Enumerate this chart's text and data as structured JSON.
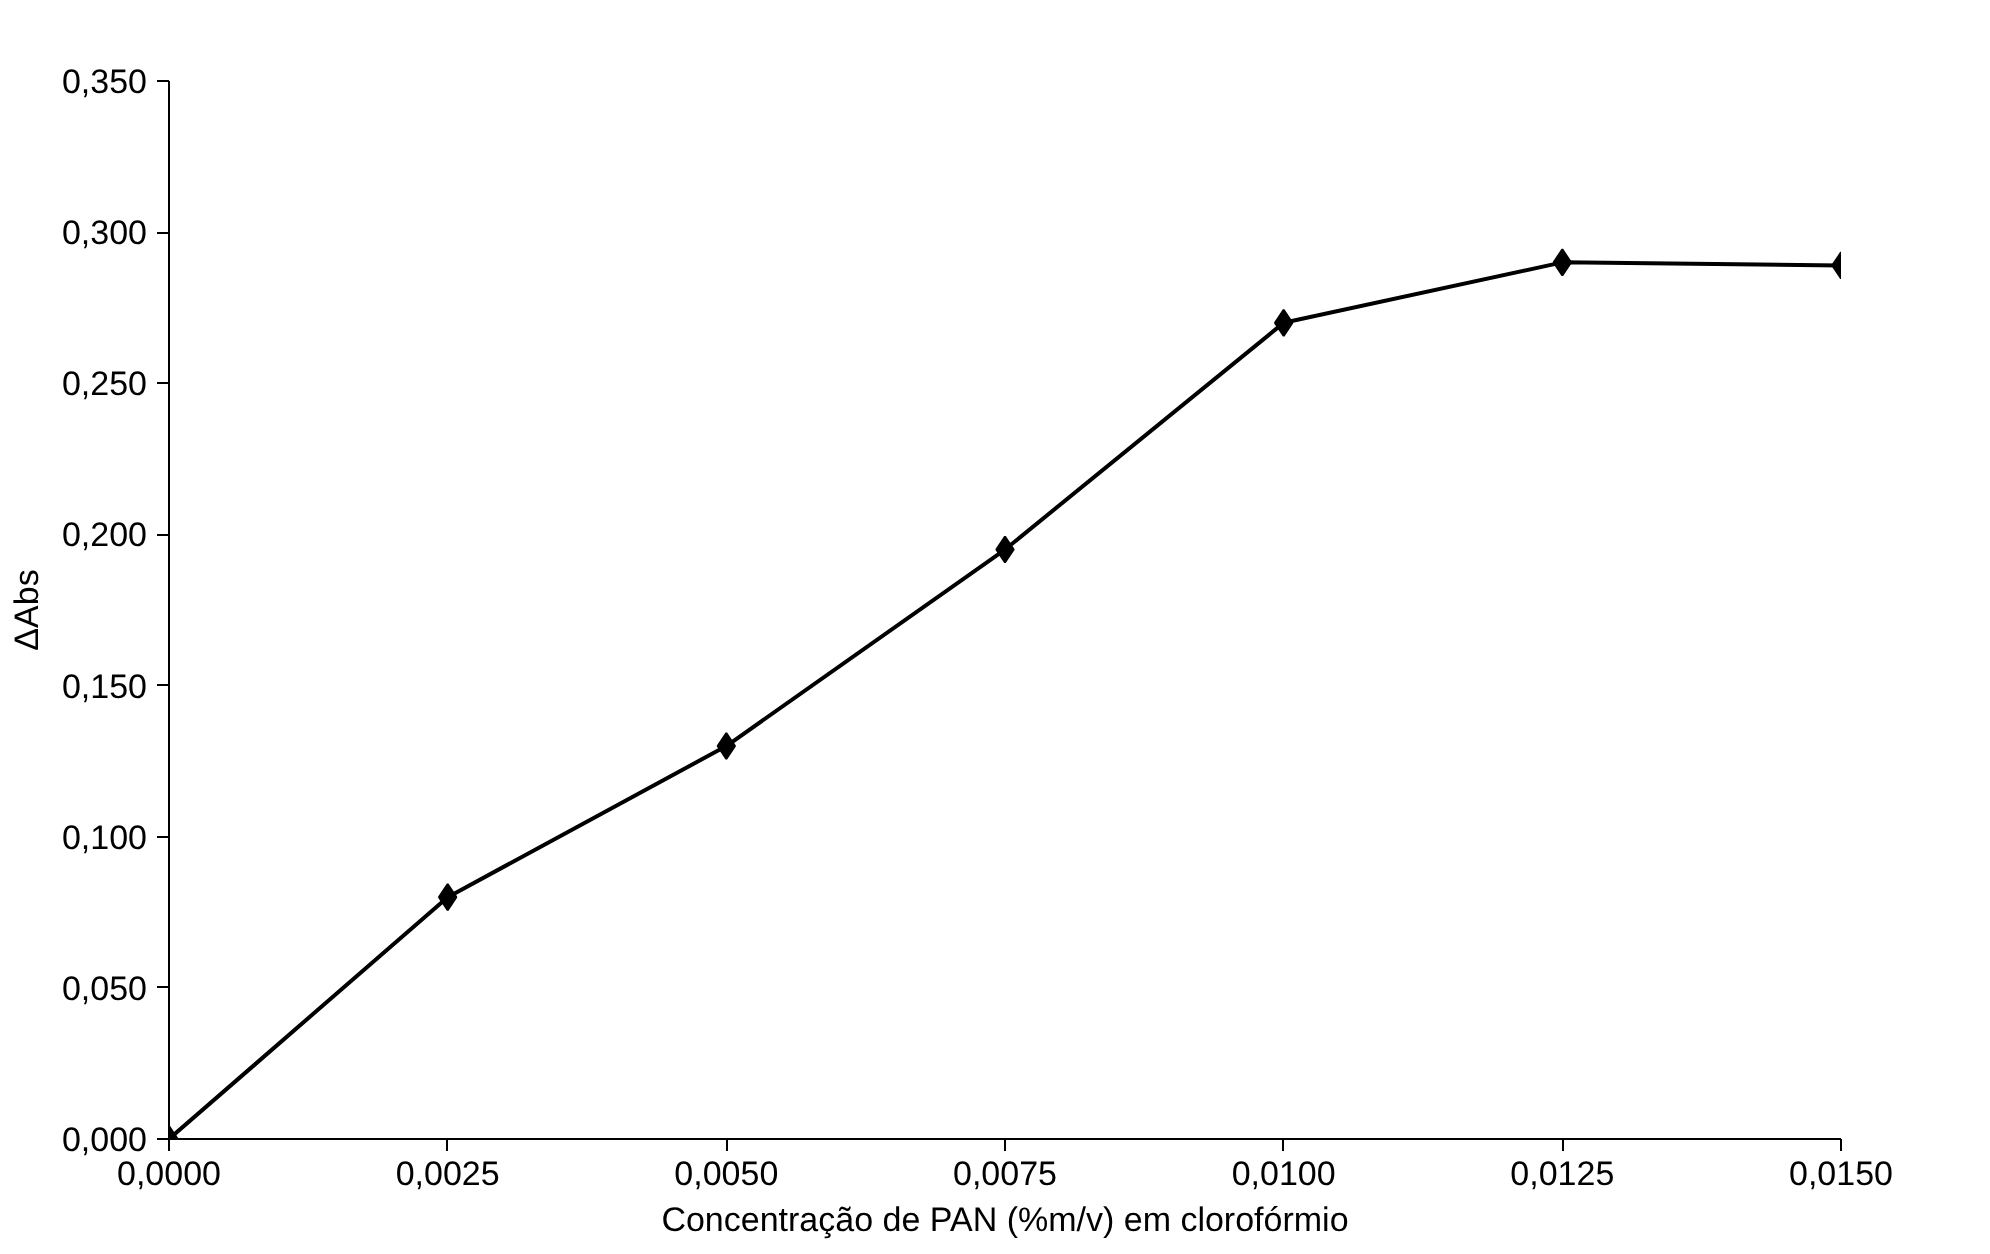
{
  "chart_data": {
    "type": "line",
    "xlabel": "Concentração de PAN (%m/v) em clorofórmio",
    "ylabel": "ΔAbs",
    "x": [
      0.0,
      0.0025,
      0.005,
      0.0075,
      0.01,
      0.0125,
      0.015
    ],
    "series": [
      {
        "color": "#000000",
        "values": [
          0.0,
          0.08,
          0.13,
          0.195,
          0.27,
          0.29,
          0.289
        ]
      }
    ],
    "xlim": [
      0,
      0.015
    ],
    "ylim": [
      0,
      0.35
    ],
    "xticks": [
      {
        "value": 0,
        "label": "0,0000"
      },
      {
        "value": 0.0025,
        "label": "0,0025"
      },
      {
        "value": 0.005,
        "label": "0,0050"
      },
      {
        "value": 0.0075,
        "label": "0,0075"
      },
      {
        "value": 0.01,
        "label": "0,0100"
      },
      {
        "value": 0.0125,
        "label": "0,0125"
      },
      {
        "value": 0.015,
        "label": "0,0150"
      }
    ],
    "yticks": [
      {
        "value": 0,
        "label": "0,000"
      },
      {
        "value": 0.05,
        "label": "0,050"
      },
      {
        "value": 0.1,
        "label": "0,100"
      },
      {
        "value": 0.15,
        "label": "0,150"
      },
      {
        "value": 0.2,
        "label": "0,200"
      },
      {
        "value": 0.25,
        "label": "0,250"
      },
      {
        "value": 0.3,
        "label": "0,300"
      },
      {
        "value": 0.35,
        "label": "0,350"
      }
    ],
    "grid": false,
    "marker": "diamond",
    "line_style": "solid"
  }
}
